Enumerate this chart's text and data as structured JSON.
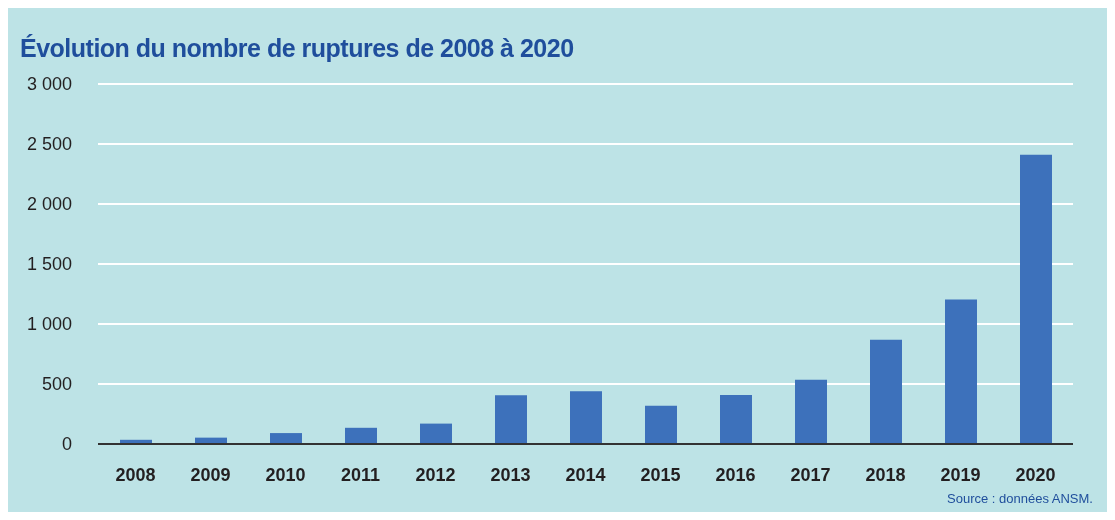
{
  "chart_data": {
    "type": "bar",
    "title": "Évolution du nombre de ruptures de 2008 à 2020",
    "categories": [
      "2008",
      "2009",
      "2010",
      "2011",
      "2012",
      "2013",
      "2014",
      "2015",
      "2016",
      "2017",
      "2018",
      "2019",
      "2020"
    ],
    "values": [
      35,
      53,
      91,
      135,
      170,
      406,
      439,
      318,
      408,
      535,
      869,
      1204,
      2411
    ],
    "color": "#3d71bb",
    "ylim": [
      0,
      3000
    ],
    "yticks": [
      0,
      500,
      {
        "value": 1000,
        "label": "1 000"
      },
      {
        "value": 1500,
        "label": "1 500"
      },
      {
        "value": 2000,
        "label": "2 000"
      },
      {
        "value": 2500,
        "label": "2 500"
      },
      {
        "value": 3000,
        "label": "3 000"
      }
    ],
    "grid": "y",
    "annotations": [
      "Source : données ANSM."
    ]
  }
}
